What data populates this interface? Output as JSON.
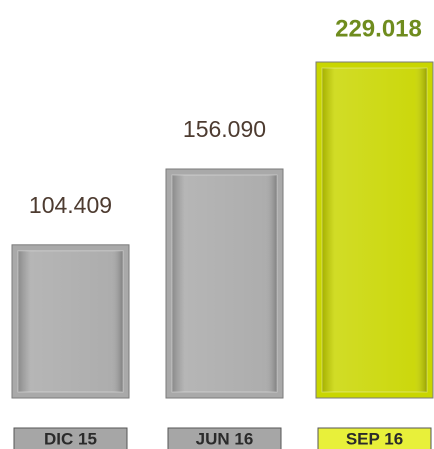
{
  "chart_data": {
    "type": "bar",
    "categories": [
      "DIC 15",
      "JUN 16",
      "SEP 16"
    ],
    "values": [
      104409,
      156090,
      229018
    ],
    "value_labels": [
      "104.409",
      "156.090",
      "229.018"
    ],
    "colors": [
      "#a9a9a9",
      "#a9a9a9",
      "#c9d600"
    ],
    "label_box_colors": [
      "#a6a6a6",
      "#a6a6a6",
      "#e8f03a"
    ]
  }
}
